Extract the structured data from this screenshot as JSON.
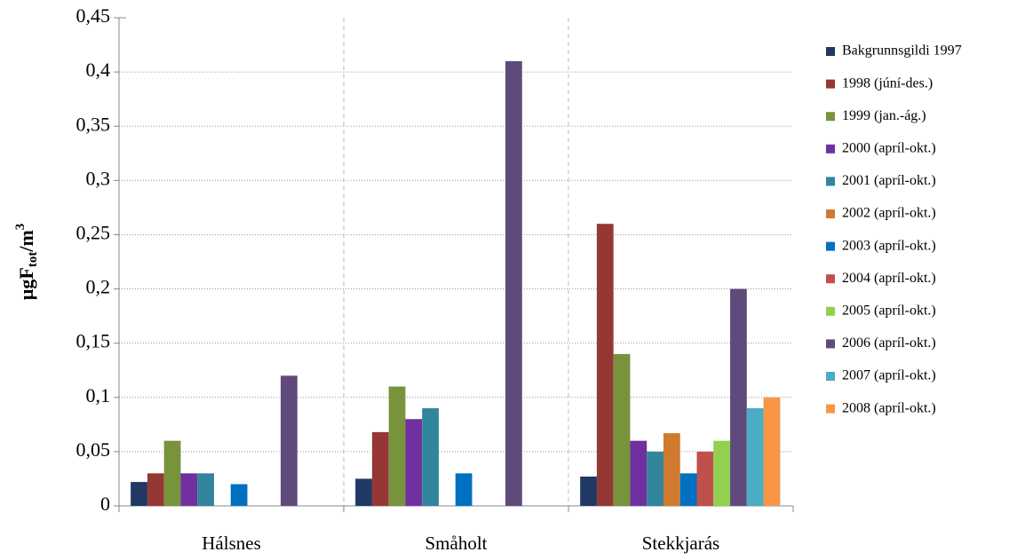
{
  "chart_data": {
    "type": "bar",
    "ylabel_parts": [
      "µgF",
      "tot",
      "/m",
      "3"
    ],
    "categories": [
      "Hálsnes",
      "Småholt",
      "Stekkjarás"
    ],
    "series": [
      {
        "name": "Bakgrunnsgildi 1997",
        "color": "#1f3864",
        "values": [
          0.022,
          0.025,
          0.027
        ]
      },
      {
        "name": "1998 (júní-des.)",
        "color": "#953735",
        "values": [
          0.03,
          0.068,
          0.26
        ]
      },
      {
        "name": "1999 (jan.-ág.)",
        "color": "#77933c",
        "values": [
          0.06,
          0.11,
          0.14
        ]
      },
      {
        "name": "2000 (apríl-okt.)",
        "color": "#7030a0",
        "values": [
          0.03,
          0.08,
          0.06
        ]
      },
      {
        "name": "2001 (apríl-okt.)",
        "color": "#31859c",
        "values": [
          0.03,
          0.09,
          0.05
        ]
      },
      {
        "name": "2002 (apríl-okt.)",
        "color": "#d07a30",
        "values": [
          null,
          null,
          0.067
        ]
      },
      {
        "name": "2003 (apríl-okt.)",
        "color": "#0070c0",
        "values": [
          0.02,
          0.03,
          0.03
        ]
      },
      {
        "name": "2004 (apríl-okt.)",
        "color": "#c0504d",
        "values": [
          null,
          null,
          0.05
        ]
      },
      {
        "name": "2005 (apríl-okt.)",
        "color": "#92d050",
        "values": [
          null,
          null,
          0.06
        ]
      },
      {
        "name": "2006 (apríl-okt.)",
        "color": "#604a7b",
        "values": [
          0.12,
          0.41,
          0.2
        ]
      },
      {
        "name": "2007 (apríl-okt.)",
        "color": "#4bacc6",
        "values": [
          null,
          null,
          0.09
        ]
      },
      {
        "name": "2008 (apríl-okt.)",
        "color": "#f79646",
        "values": [
          null,
          null,
          0.1
        ]
      }
    ],
    "ylim": [
      0,
      0.45
    ],
    "yticks": [
      0,
      {
        "value": 0.05,
        "label": "0,05"
      },
      {
        "value": 0.1,
        "label": "0,1"
      },
      {
        "value": 0.15,
        "label": "0,15"
      },
      {
        "value": 0.2,
        "label": "0,2"
      },
      {
        "value": 0.25,
        "label": "0,25"
      },
      {
        "value": 0.3,
        "label": "0,3"
      },
      {
        "value": 0.35,
        "label": "0,35"
      },
      {
        "value": 0.4,
        "label": "0,4"
      },
      {
        "value": 0.45,
        "label": "0,45"
      }
    ],
    "grid": true
  }
}
